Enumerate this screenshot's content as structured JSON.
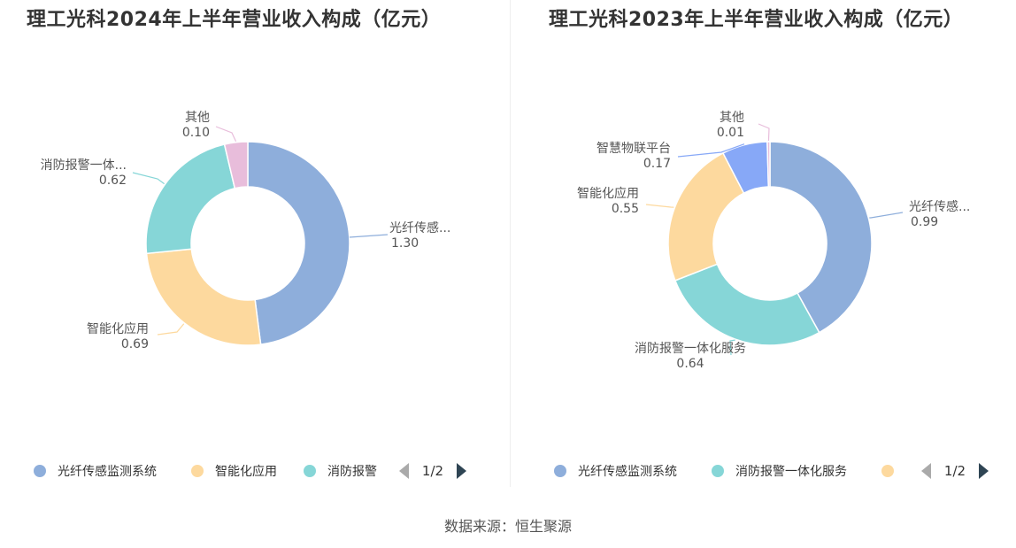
{
  "source": "数据来源：恒生聚源",
  "chart_data": [
    {
      "type": "pie",
      "title": "理工光科2024年上半年营业收入构成（亿元）",
      "slices": [
        {
          "name": "光纤传感监测系统",
          "label": "光纤传感...",
          "value": 1.3,
          "value_text": "1.30",
          "color": "#8eaedb"
        },
        {
          "name": "智能化应用",
          "label": "智能化应用",
          "value": 0.69,
          "value_text": "0.69",
          "color": "#fdd99e"
        },
        {
          "name": "消防报警一体化服务",
          "label": "消防报警一体...",
          "value": 0.62,
          "value_text": "0.62",
          "color": "#86d6d7"
        },
        {
          "name": "其他",
          "label": "其他",
          "value": 0.1,
          "value_text": "0.10",
          "color": "#e8bddb"
        }
      ],
      "legend": {
        "position": "bottom",
        "items": [
          {
            "label": "光纤传感监测系统",
            "color": "#8eaedb"
          },
          {
            "label": "智能化应用",
            "color": "#fdd99e"
          },
          {
            "label": "消防报警",
            "color": "#86d6d7"
          }
        ],
        "page": "1/2"
      }
    },
    {
      "type": "pie",
      "title": "理工光科2023年上半年营业收入构成（亿元）",
      "slices": [
        {
          "name": "光纤传感监测系统",
          "label": "光纤传感...",
          "value": 0.99,
          "value_text": "0.99",
          "color": "#8eaedb"
        },
        {
          "name": "消防报警一体化服务",
          "label": "消防报警一体化服务",
          "value": 0.64,
          "value_text": "0.64",
          "color": "#86d6d7"
        },
        {
          "name": "智能化应用",
          "label": "智能化应用",
          "value": 0.55,
          "value_text": "0.55",
          "color": "#fdd99e"
        },
        {
          "name": "智慧物联平台",
          "label": "智慧物联平台",
          "value": 0.17,
          "value_text": "0.17",
          "color": "#87a8f7"
        },
        {
          "name": "其他",
          "label": "其他",
          "value": 0.01,
          "value_text": "0.01",
          "color": "#e8bddb"
        }
      ],
      "legend": {
        "position": "bottom",
        "items": [
          {
            "label": "光纤传感监测系统",
            "color": "#8eaedb"
          },
          {
            "label": "消防报警一体化服务",
            "color": "#86d6d7"
          },
          {
            "label": "",
            "color": "#fdd99e"
          }
        ],
        "page": "1/2"
      }
    }
  ]
}
